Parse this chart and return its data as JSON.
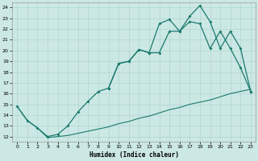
{
  "xlabel": "Humidex (Indice chaleur)",
  "bg_color": "#cce8e4",
  "line_color": "#1a7a6e",
  "grid_color": "#b0d4d0",
  "xlim": [
    -0.5,
    23.5
  ],
  "ylim": [
    11.5,
    24.5
  ],
  "xticks": [
    0,
    1,
    2,
    3,
    4,
    5,
    6,
    7,
    8,
    9,
    10,
    11,
    12,
    13,
    14,
    15,
    16,
    17,
    18,
    19,
    20,
    21,
    22,
    23
  ],
  "yticks": [
    12,
    13,
    14,
    15,
    16,
    17,
    18,
    19,
    20,
    21,
    22,
    23,
    24
  ],
  "line_straight_x": [
    0,
    1,
    2,
    3,
    4,
    5,
    6,
    7,
    8,
    9,
    10,
    11,
    12,
    13,
    14,
    15,
    16,
    17,
    18,
    19,
    20,
    21,
    22,
    23
  ],
  "line_straight_y": [
    14.8,
    13.5,
    12.8,
    11.9,
    12.0,
    12.1,
    12.3,
    12.5,
    12.7,
    12.9,
    13.2,
    13.4,
    13.7,
    13.9,
    14.2,
    14.5,
    14.7,
    15.0,
    15.2,
    15.4,
    15.7,
    16.0,
    16.2,
    16.4
  ],
  "line_mid_x": [
    0,
    1,
    2,
    3,
    4,
    5,
    6,
    7,
    8,
    9,
    10,
    11,
    12,
    13,
    14,
    15,
    16,
    17,
    18,
    19,
    20,
    21,
    22,
    23
  ],
  "line_mid_y": [
    14.8,
    13.5,
    12.8,
    12.0,
    12.2,
    13.0,
    14.3,
    15.3,
    16.2,
    16.5,
    18.8,
    19.0,
    20.1,
    19.8,
    19.8,
    21.8,
    21.8,
    22.7,
    22.5,
    20.2,
    21.8,
    20.2,
    18.4,
    16.2
  ],
  "line_top_x": [
    9,
    10,
    11,
    12,
    13,
    14,
    15,
    16,
    17,
    18,
    19,
    20,
    21,
    22,
    23
  ],
  "line_top_y": [
    16.5,
    18.8,
    19.0,
    20.1,
    19.8,
    22.5,
    22.9,
    21.8,
    23.2,
    24.2,
    22.7,
    20.2,
    21.8,
    20.2,
    16.2
  ]
}
